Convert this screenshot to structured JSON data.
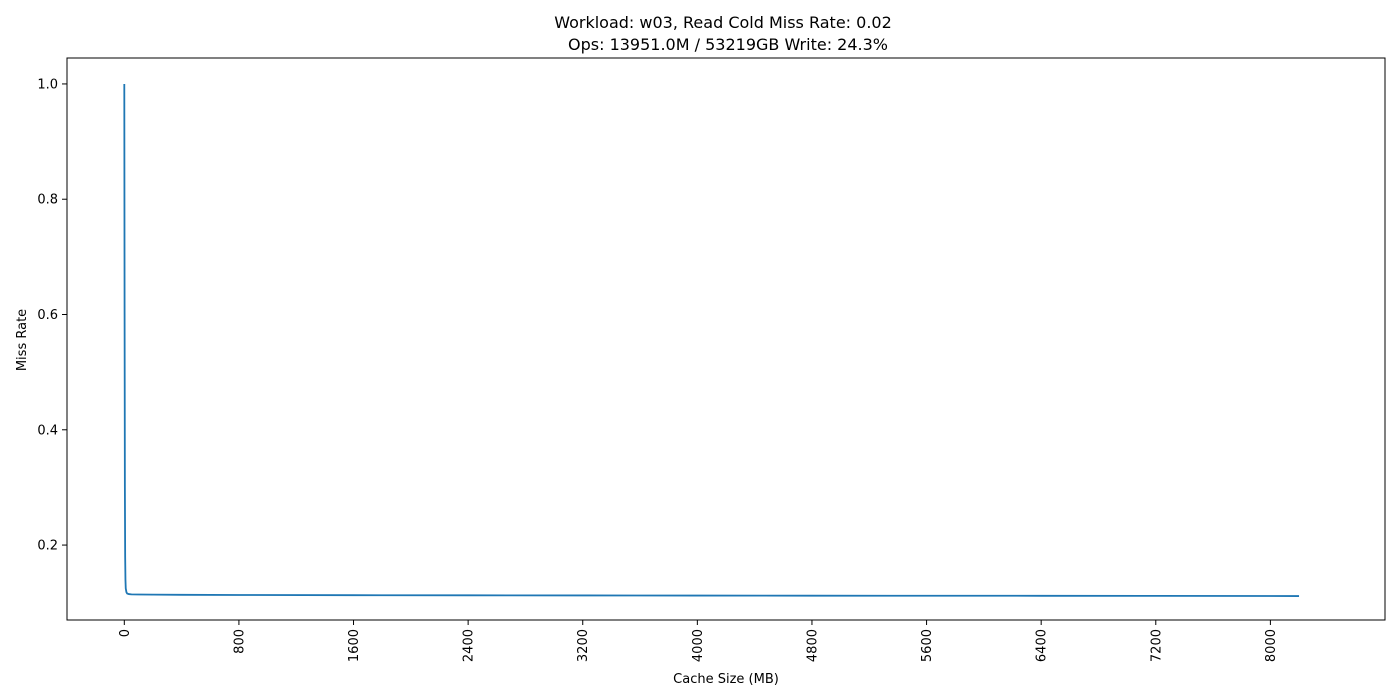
{
  "chart_data": {
    "type": "line",
    "title_line1": "Workload: w03, Read Cold Miss Rate: 0.02",
    "title_line2": "Ops: 13951.0M / 53219GB Write: 24.3%",
    "xlabel": "Cache Size (MB)",
    "ylabel": "Miss Rate",
    "xlim": [
      -400,
      8800
    ],
    "ylim": [
      0.07,
      1.045
    ],
    "xticks": [
      0,
      800,
      1600,
      2400,
      3200,
      4000,
      4800,
      5600,
      6400,
      7200,
      8000
    ],
    "xtick_labels": [
      "0",
      "800",
      "1600",
      "2400",
      "3200",
      "4000",
      "4800",
      "5600",
      "6400",
      "7200",
      "8000"
    ],
    "yticks": [
      0.2,
      0.4,
      0.6,
      0.8,
      1.0
    ],
    "ytick_labels": [
      "0.2",
      "0.4",
      "0.6",
      "0.8",
      "1.0"
    ],
    "grid": false,
    "series": [
      {
        "color": "#1f77b4",
        "x": [
          0,
          2,
          4,
          6,
          8,
          10,
          15,
          20,
          30,
          50,
          100,
          200,
          400,
          800,
          1600,
          2400,
          3200,
          4000,
          4800,
          5600,
          6400,
          7200,
          8000,
          8200
        ],
        "y": [
          1.0,
          0.6,
          0.3,
          0.18,
          0.14,
          0.125,
          0.118,
          0.116,
          0.115,
          0.1145,
          0.1142,
          0.114,
          0.1137,
          0.1134,
          0.113,
          0.1128,
          0.1126,
          0.1124,
          0.1122,
          0.1121,
          0.112,
          0.1118,
          0.1116,
          0.1115
        ]
      }
    ]
  }
}
